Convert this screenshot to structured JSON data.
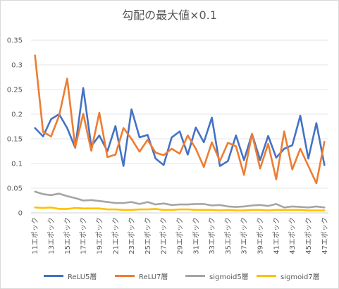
{
  "chart_data": {
    "type": "line",
    "title": "勾配の最大値×0.1",
    "xlabel": "",
    "ylabel": "",
    "ylim": [
      0,
      0.35
    ],
    "yticks": [
      "0",
      "0.05",
      "0.1",
      "0.15",
      "0.2",
      "0.25",
      "0.3",
      "0.35"
    ],
    "ytick_values": [
      0,
      0.05,
      0.1,
      0.15,
      0.2,
      0.25,
      0.3,
      0.35
    ],
    "grid": true,
    "legend_position": "bottom",
    "categories": [
      "11エポック",
      "12エポック",
      "13エポック",
      "14エポック",
      "15エポック",
      "16エポック",
      "17エポック",
      "18エポック",
      "19エポック",
      "20エポック",
      "21エポック",
      "22エポック",
      "23エポック",
      "24エポック",
      "25エポック",
      "26エポック",
      "27エポック",
      "28エポック",
      "29エポック",
      "30エポック",
      "31エポック",
      "32エポック",
      "33エポック",
      "34エポック",
      "35エポック",
      "36エポック",
      "37エポック",
      "38エポック",
      "39エポック",
      "40エポック",
      "41エポック",
      "42エポック",
      "43エポック",
      "44エポック",
      "45エポック",
      "46エポック",
      "47エポック"
    ],
    "xtick_labels": [
      "11エポック",
      "13エポック",
      "15エポック",
      "17エポック",
      "19エポック",
      "21エポック",
      "23エポック",
      "25エポック",
      "27エポック",
      "29エポック",
      "31エポック",
      "33エポック",
      "35エポック",
      "37エポック",
      "39エポック",
      "41エポック",
      "43エポック",
      "45エポック",
      "47エポック"
    ],
    "series": [
      {
        "name": "ReLU5層",
        "color": "#4472C4",
        "values": [
          0.172,
          0.155,
          0.19,
          0.2,
          0.172,
          0.132,
          0.253,
          0.135,
          0.157,
          0.125,
          0.176,
          0.095,
          0.21,
          0.153,
          0.158,
          0.11,
          0.097,
          0.153,
          0.165,
          0.118,
          0.173,
          0.143,
          0.193,
          0.095,
          0.105,
          0.157,
          0.107,
          0.16,
          0.107,
          0.156,
          0.112,
          0.13,
          0.137,
          0.197,
          0.11,
          0.182,
          0.097
        ]
      },
      {
        "name": "ReLU7層",
        "color": "#ED7D31",
        "values": [
          0.319,
          0.164,
          0.155,
          0.197,
          0.272,
          0.133,
          0.201,
          0.126,
          0.203,
          0.113,
          0.118,
          0.172,
          0.15,
          0.124,
          0.148,
          0.122,
          0.117,
          0.13,
          0.12,
          0.157,
          0.13,
          0.093,
          0.143,
          0.105,
          0.142,
          0.135,
          0.077,
          0.16,
          0.09,
          0.14,
          0.068,
          0.165,
          0.088,
          0.13,
          0.095,
          0.06,
          0.144
        ]
      },
      {
        "name": "sigmoid5層",
        "color": "#A5A5A5",
        "values": [
          0.043,
          0.038,
          0.036,
          0.039,
          0.034,
          0.03,
          0.025,
          0.026,
          0.024,
          0.022,
          0.02,
          0.02,
          0.022,
          0.018,
          0.022,
          0.017,
          0.019,
          0.016,
          0.017,
          0.017,
          0.018,
          0.018,
          0.015,
          0.016,
          0.013,
          0.012,
          0.013,
          0.015,
          0.016,
          0.014,
          0.018,
          0.011,
          0.013,
          0.012,
          0.011,
          0.013,
          0.011
        ]
      },
      {
        "name": "sigmoid7層",
        "color": "#FFC000",
        "values": [
          0.011,
          0.01,
          0.011,
          0.008,
          0.008,
          0.01,
          0.009,
          0.009,
          0.009,
          0.007,
          0.007,
          0.006,
          0.006,
          0.007,
          0.007,
          0.008,
          0.006,
          0.006,
          0.007,
          0.007,
          0.006,
          0.006,
          0.006,
          0.005,
          0.006,
          0.005,
          0.005,
          0.006,
          0.006,
          0.005,
          0.006,
          0.006,
          0.006,
          0.006,
          0.005,
          0.005,
          0.005
        ]
      }
    ]
  }
}
